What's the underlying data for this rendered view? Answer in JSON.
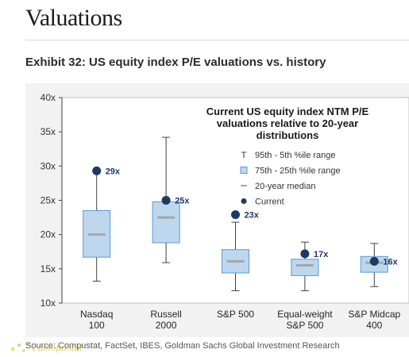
{
  "page": {
    "title": "Valuations",
    "exhibit_title": "Exhibit 32: US equity index P/E valuations vs. history",
    "source": "Source: Compustat, FactSet, IBES, Goldman Sachs Global Investment Research",
    "watermark": "compustat"
  },
  "chart_data": {
    "type": "box",
    "title": "Current US equity index NTM P/E valuations relative to 20-year distributions",
    "title_lines": [
      "Current US equity index NTM P/E",
      "valuations relative to 20-year",
      "distributions"
    ],
    "ylim": [
      10,
      40
    ],
    "y_ticks": [
      10,
      15,
      20,
      25,
      30,
      35,
      40
    ],
    "y_tick_labels": [
      "10x",
      "15x",
      "20x",
      "25x",
      "30x",
      "35x",
      "40x"
    ],
    "grid": false,
    "legend_position": "top-right",
    "legend": [
      {
        "symbol": "T",
        "label": "95th - 5th %ile range"
      },
      {
        "symbol": "box",
        "label": "75th - 25th %ile range"
      },
      {
        "symbol": "dash",
        "label": "20-year median"
      },
      {
        "symbol": "dot",
        "label": "Current"
      }
    ],
    "categories": [
      {
        "name": [
          "Nasdaq",
          "100"
        ],
        "p5": 13.2,
        "p25": 16.7,
        "median": 20.0,
        "p75": 23.5,
        "p95": 29.4,
        "current": 29.3,
        "current_label": "29x"
      },
      {
        "name": [
          "Russell",
          "2000"
        ],
        "p5": 15.9,
        "p25": 18.8,
        "median": 22.5,
        "p75": 24.8,
        "p95": 34.2,
        "current": 25.0,
        "current_label": "25x"
      },
      {
        "name": [
          "S&P 500"
        ],
        "p5": 11.8,
        "p25": 14.4,
        "median": 16.1,
        "p75": 17.8,
        "p95": 21.8,
        "current": 22.9,
        "current_label": "23x"
      },
      {
        "name": [
          "Equal-weight",
          "S&P 500"
        ],
        "p5": 11.8,
        "p25": 14.0,
        "median": 15.5,
        "p75": 16.4,
        "p95": 18.9,
        "current": 17.2,
        "current_label": "17x"
      },
      {
        "name": [
          "S&P Midcap",
          "400"
        ],
        "p5": 12.4,
        "p25": 14.5,
        "median": 15.9,
        "p75": 16.8,
        "p95": 18.7,
        "current": 16.1,
        "current_label": "16x"
      }
    ],
    "colors": {
      "box_fill": "#bdd7ee",
      "box_stroke": "#5b9bd5",
      "median": "#a6a6a6",
      "current": "#1f3864",
      "whisker": "#404040",
      "axis": "#404040"
    }
  }
}
